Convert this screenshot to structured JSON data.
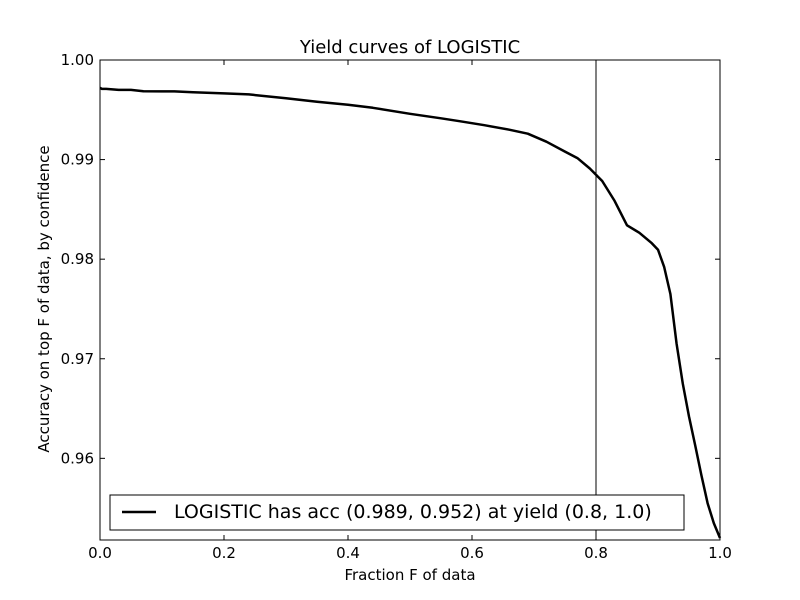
{
  "chart_data": {
    "type": "line",
    "title": "Yield curves of LOGISTIC",
    "xlabel": "Fraction F of data",
    "ylabel": "Accuracy on top F of data, by confidence",
    "xlim": [
      0.0,
      1.0
    ],
    "ylim": [
      0.9518,
      1.0
    ],
    "x_ticks": [
      0.0,
      0.2,
      0.4,
      0.6,
      0.8,
      1.0
    ],
    "x_tick_labels": [
      "0.0",
      "0.2",
      "0.4",
      "0.6",
      "0.8",
      "1.0"
    ],
    "y_ticks": [
      0.96,
      0.97,
      0.98,
      0.99,
      1.0
    ],
    "y_tick_labels": [
      "0.96",
      "0.97",
      "0.98",
      "0.99",
      "1.00"
    ],
    "grid": false,
    "legend_position": "bottom",
    "vertical_line_x": 0.8,
    "series": [
      {
        "name": "LOGISTIC has acc (0.989, 0.952) at yield (0.8, 1.0)",
        "color": "#000000",
        "x": [
          0.0,
          0.003,
          0.01,
          0.02,
          0.03,
          0.05,
          0.07,
          0.1,
          0.12,
          0.15,
          0.2,
          0.24,
          0.3,
          0.35,
          0.4,
          0.44,
          0.5,
          0.55,
          0.58,
          0.62,
          0.66,
          0.69,
          0.72,
          0.75,
          0.77,
          0.79,
          0.81,
          0.83,
          0.85,
          0.87,
          0.89,
          0.9,
          0.91,
          0.92,
          0.93,
          0.94,
          0.95,
          0.96,
          0.97,
          0.98,
          0.99,
          1.0
        ],
        "y": [
          0.9972,
          0.9971,
          0.9971,
          0.99705,
          0.997,
          0.997,
          0.99687,
          0.99685,
          0.99685,
          0.99677,
          0.99665,
          0.99655,
          0.99615,
          0.9958,
          0.9955,
          0.9952,
          0.9946,
          0.99415,
          0.99385,
          0.99345,
          0.993,
          0.9926,
          0.9918,
          0.9908,
          0.99015,
          0.9891,
          0.98785,
          0.98585,
          0.9834,
          0.98265,
          0.9816,
          0.98095,
          0.9792,
          0.9765,
          0.9715,
          0.9675,
          0.9642,
          0.9613,
          0.9583,
          0.9555,
          0.9535,
          0.952
        ]
      }
    ]
  }
}
